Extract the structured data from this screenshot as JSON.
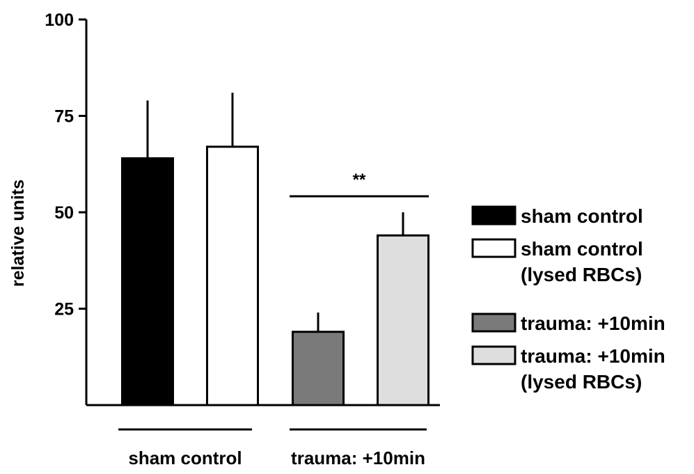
{
  "chart_data": {
    "type": "bar",
    "title": "",
    "xlabel": "",
    "ylabel": "relative units",
    "ylim": [
      0,
      100
    ],
    "yticks": [
      25,
      50,
      75,
      100
    ],
    "grid": false,
    "legend_position": "right",
    "groups": [
      "sham control",
      "trauma: +10min"
    ],
    "bars": [
      {
        "name": "sham control",
        "group": "sham control",
        "value": 64,
        "error": 15,
        "fill": "#000000"
      },
      {
        "name": "sham control (lysed RBCs)",
        "group": "sham control",
        "value": 67,
        "error": 14,
        "fill": "#ffffff"
      },
      {
        "name": "trauma: +10min",
        "group": "trauma: +10min",
        "value": 19,
        "error": 5,
        "fill": "#7a7a7a"
      },
      {
        "name": "trauma: +10min (lysed RBCs)",
        "group": "trauma: +10min",
        "value": 44,
        "error": 6,
        "fill": "#dedede"
      }
    ],
    "legend": [
      {
        "lines": [
          "sham control"
        ],
        "fill": "#000000"
      },
      {
        "lines": [
          "sham control",
          "(lysed RBCs)"
        ],
        "fill": "#ffffff"
      },
      {
        "lines": [
          "trauma: +10min"
        ],
        "fill": "#7a7a7a"
      },
      {
        "lines": [
          "trauma: +10min",
          "(lysed RBCs)"
        ],
        "fill": "#dedede"
      }
    ],
    "annotations": [
      {
        "text": "**",
        "between": [
          "trauma: +10min",
          "trauma: +10min (lysed RBCs)"
        ]
      }
    ]
  }
}
